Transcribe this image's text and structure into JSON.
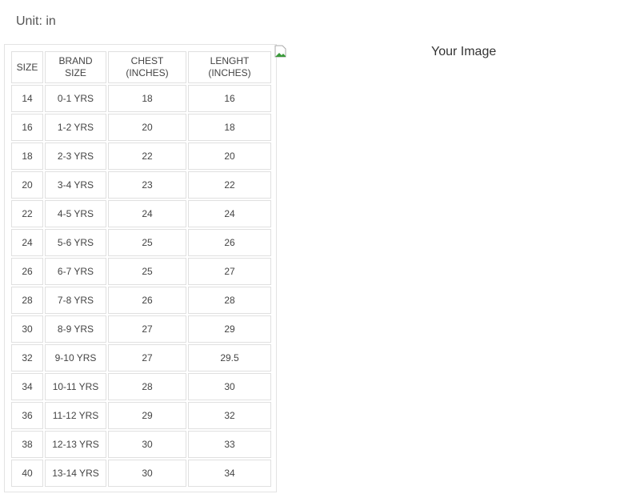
{
  "unit_label": "Unit: in",
  "image_alt": "Your Image",
  "table": {
    "headers": [
      [
        "SIZE"
      ],
      [
        "BRAND",
        "SIZE"
      ],
      [
        "CHEST",
        "(INCHES)"
      ],
      [
        "LENGHT",
        "(INCHES)"
      ]
    ],
    "rows": [
      [
        "14",
        "0-1 YRS",
        "18",
        "16"
      ],
      [
        "16",
        "1-2 YRS",
        "20",
        "18"
      ],
      [
        "18",
        "2-3 YRS",
        "22",
        "20"
      ],
      [
        "20",
        "3-4 YRS",
        "23",
        "22"
      ],
      [
        "22",
        "4-5 YRS",
        "24",
        "24"
      ],
      [
        "24",
        "5-6 YRS",
        "25",
        "26"
      ],
      [
        "26",
        "6-7 YRS",
        "25",
        "27"
      ],
      [
        "28",
        "7-8 YRS",
        "26",
        "28"
      ],
      [
        "30",
        "8-9 YRS",
        "27",
        "29"
      ],
      [
        "32",
        "9-10 YRS",
        "27",
        "29.5"
      ],
      [
        "34",
        "10-11 YRS",
        "28",
        "30"
      ],
      [
        "36",
        "11-12 YRS",
        "29",
        "32"
      ],
      [
        "38",
        "12-13 YRS",
        "30",
        "33"
      ],
      [
        "40",
        "13-14 YRS",
        "30",
        "34"
      ]
    ]
  }
}
